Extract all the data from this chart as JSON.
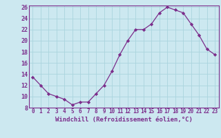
{
  "x": [
    0,
    1,
    2,
    3,
    4,
    5,
    6,
    7,
    8,
    9,
    10,
    11,
    12,
    13,
    14,
    15,
    16,
    17,
    18,
    19,
    20,
    21,
    22,
    23
  ],
  "y": [
    13.5,
    12.0,
    10.5,
    10.0,
    9.5,
    8.5,
    9.0,
    9.0,
    10.5,
    12.0,
    14.5,
    17.5,
    20.0,
    22.0,
    22.0,
    23.0,
    25.0,
    26.0,
    25.5,
    25.0,
    23.0,
    21.0,
    18.5,
    17.5
  ],
  "xlabel": "Windchill (Refroidissement éolien,°C)",
  "ylim": [
    8,
    26
  ],
  "xlim_min": -0.5,
  "xlim_max": 23.5,
  "yticks": [
    8,
    10,
    12,
    14,
    16,
    18,
    20,
    22,
    24,
    26
  ],
  "xticks": [
    0,
    1,
    2,
    3,
    4,
    5,
    6,
    7,
    8,
    9,
    10,
    11,
    12,
    13,
    14,
    15,
    16,
    17,
    18,
    19,
    20,
    21,
    22,
    23
  ],
  "line_color": "#7B2D8B",
  "bg_color": "#cce8f0",
  "grid_color": "#aad4de",
  "spine_color": "#7B2D8B",
  "tick_label_fontsize": 5.5,
  "xlabel_fontsize": 6.5
}
